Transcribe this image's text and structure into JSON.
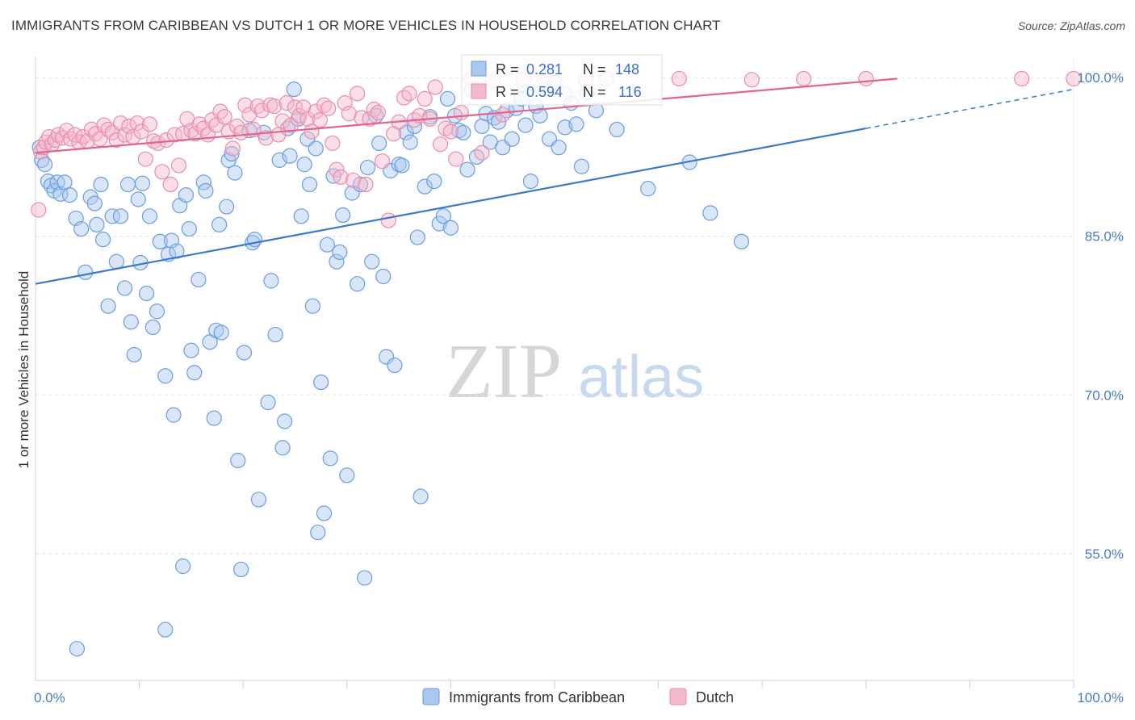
{
  "title": "IMMIGRANTS FROM CARIBBEAN VS DUTCH 1 OR MORE VEHICLES IN HOUSEHOLD CORRELATION CHART",
  "source": "Source: ZipAtlas.com",
  "watermark": {
    "part1": "ZIP",
    "part2": "atlas"
  },
  "colors": {
    "blue_fill": "#a9c8f0",
    "blue_stroke": "#6b9de0",
    "blue_line": "#3b78d0",
    "pink_fill": "#f5b9cc",
    "pink_stroke": "#eb8dab",
    "pink_line": "#e0668f",
    "grid": "#e4e4e4",
    "tick_text": "#4a7bc8"
  },
  "legend": {
    "series": [
      {
        "name": "Immigrants from Caribbean",
        "color": "#a9c8f0"
      },
      {
        "name": "Dutch",
        "color": "#f5b9cc"
      }
    ],
    "stats": [
      {
        "r_label": "R =",
        "r_value": "0.281",
        "n_label": "N =",
        "n_value": "148"
      },
      {
        "r_label": "R =",
        "r_value": "0.594",
        "n_label": "N =",
        "n_value": "116"
      }
    ]
  },
  "chart_data": {
    "type": "scatter",
    "ylabel": "1 or more Vehicles in Household",
    "x_tick_labels": [
      "0.0%",
      "100.0%"
    ],
    "y_tick_labels": [
      "100.0%",
      "85.0%",
      "70.0%",
      "55.0%"
    ],
    "y_ticks": [
      100,
      85,
      70,
      55
    ],
    "xlim": [
      0,
      100
    ],
    "ylim": [
      43,
      102
    ],
    "grid": true,
    "legend_position": "bottom",
    "series": [
      {
        "name": "Immigrants from Caribbean",
        "trend": {
          "x": [
            0,
            80
          ],
          "y": [
            80.5,
            95.2
          ],
          "dashed_extension": {
            "x": [
              80,
              100
            ],
            "y": [
              95.2,
              98.9
            ]
          }
        },
        "points": [
          [
            0.4,
            93.4
          ],
          [
            0.6,
            92.2
          ],
          [
            0.9,
            91.8
          ],
          [
            1.2,
            90.2
          ],
          [
            1.5,
            89.8
          ],
          [
            1.8,
            89.3
          ],
          [
            2.1,
            90.1
          ],
          [
            2.4,
            89.0
          ],
          [
            2.8,
            90.1
          ],
          [
            3.3,
            88.9
          ],
          [
            3.9,
            86.7
          ],
          [
            4.4,
            85.7
          ],
          [
            4.8,
            81.6
          ],
          [
            5.3,
            88.7
          ],
          [
            5.7,
            88.1
          ],
          [
            5.9,
            86.1
          ],
          [
            6.3,
            89.9
          ],
          [
            6.5,
            84.7
          ],
          [
            7.0,
            78.4
          ],
          [
            7.4,
            86.9
          ],
          [
            7.8,
            82.6
          ],
          [
            8.2,
            86.9
          ],
          [
            8.6,
            80.1
          ],
          [
            8.9,
            89.9
          ],
          [
            9.2,
            76.9
          ],
          [
            9.5,
            73.8
          ],
          [
            9.9,
            88.5
          ],
          [
            10.1,
            82.5
          ],
          [
            10.3,
            90.0
          ],
          [
            10.7,
            79.6
          ],
          [
            11.0,
            86.9
          ],
          [
            11.3,
            76.4
          ],
          [
            11.7,
            77.9
          ],
          [
            12.0,
            84.5
          ],
          [
            12.5,
            71.8
          ],
          [
            12.8,
            83.3
          ],
          [
            13.1,
            84.6
          ],
          [
            13.3,
            68.1
          ],
          [
            13.6,
            83.6
          ],
          [
            13.9,
            87.9
          ],
          [
            14.2,
            53.8
          ],
          [
            14.5,
            88.9
          ],
          [
            14.8,
            85.7
          ],
          [
            15.0,
            74.2
          ],
          [
            15.3,
            72.1
          ],
          [
            15.7,
            80.9
          ],
          [
            16.2,
            90.1
          ],
          [
            16.4,
            89.3
          ],
          [
            16.8,
            75.0
          ],
          [
            17.2,
            67.8
          ],
          [
            17.4,
            76.1
          ],
          [
            17.7,
            86.1
          ],
          [
            17.9,
            75.9
          ],
          [
            18.4,
            87.8
          ],
          [
            18.6,
            92.2
          ],
          [
            18.9,
            92.8
          ],
          [
            19.2,
            91.0
          ],
          [
            19.5,
            63.8
          ],
          [
            19.8,
            53.5
          ],
          [
            20.1,
            74.0
          ],
          [
            20.6,
            95.0
          ],
          [
            20.9,
            84.4
          ],
          [
            21.1,
            84.7
          ],
          [
            21.5,
            60.1
          ],
          [
            22.0,
            94.8
          ],
          [
            22.4,
            69.3
          ],
          [
            22.7,
            80.8
          ],
          [
            23.1,
            75.7
          ],
          [
            23.5,
            92.2
          ],
          [
            23.8,
            65.0
          ],
          [
            24.0,
            67.5
          ],
          [
            24.3,
            95.2
          ],
          [
            24.5,
            92.6
          ],
          [
            24.9,
            98.9
          ],
          [
            25.3,
            96.1
          ],
          [
            25.6,
            86.9
          ],
          [
            25.9,
            91.8
          ],
          [
            26.2,
            94.2
          ],
          [
            26.4,
            89.9
          ],
          [
            26.7,
            78.4
          ],
          [
            27.0,
            93.3
          ],
          [
            27.2,
            57.0
          ],
          [
            27.5,
            71.2
          ],
          [
            27.8,
            58.8
          ],
          [
            28.1,
            84.2
          ],
          [
            28.4,
            64.0
          ],
          [
            28.7,
            90.7
          ],
          [
            29.0,
            82.6
          ],
          [
            29.3,
            83.5
          ],
          [
            29.6,
            87.0
          ],
          [
            30.0,
            62.4
          ],
          [
            30.5,
            89.1
          ],
          [
            31.0,
            80.5
          ],
          [
            31.3,
            89.9
          ],
          [
            31.7,
            52.7
          ],
          [
            32.0,
            91.5
          ],
          [
            32.4,
            82.6
          ],
          [
            32.8,
            96.4
          ],
          [
            33.1,
            93.8
          ],
          [
            33.5,
            81.2
          ],
          [
            33.8,
            73.6
          ],
          [
            34.2,
            91.2
          ],
          [
            34.6,
            72.8
          ],
          [
            35.0,
            91.8
          ],
          [
            35.3,
            91.7
          ],
          [
            35.7,
            94.8
          ],
          [
            36.1,
            93.9
          ],
          [
            36.5,
            95.4
          ],
          [
            36.8,
            84.9
          ],
          [
            37.1,
            60.4
          ],
          [
            37.5,
            89.7
          ],
          [
            38.0,
            96.3
          ],
          [
            38.4,
            90.2
          ],
          [
            38.9,
            86.2
          ],
          [
            39.3,
            86.9
          ],
          [
            39.7,
            98.0
          ],
          [
            40.0,
            85.8
          ],
          [
            40.4,
            96.4
          ],
          [
            40.8,
            95.0
          ],
          [
            41.2,
            94.8
          ],
          [
            41.6,
            91.3
          ],
          [
            42.0,
            98.9
          ],
          [
            42.5,
            92.5
          ],
          [
            43.0,
            95.4
          ],
          [
            43.4,
            96.6
          ],
          [
            43.8,
            93.9
          ],
          [
            44.2,
            96.2
          ],
          [
            44.6,
            95.8
          ],
          [
            45.0,
            93.4
          ],
          [
            45.4,
            96.9
          ],
          [
            45.9,
            94.2
          ],
          [
            46.3,
            97.1
          ],
          [
            46.8,
            98.0
          ],
          [
            47.2,
            95.5
          ],
          [
            47.7,
            90.2
          ],
          [
            48.2,
            97.3
          ],
          [
            48.6,
            96.4
          ],
          [
            49.1,
            98.9
          ],
          [
            49.5,
            94.2
          ],
          [
            50.0,
            99.5
          ],
          [
            50.4,
            93.4
          ],
          [
            51.0,
            95.3
          ],
          [
            51.6,
            97.6
          ],
          [
            52.1,
            95.6
          ],
          [
            52.6,
            91.6
          ],
          [
            53.1,
            98.6
          ],
          [
            54.0,
            96.9
          ],
          [
            56.0,
            95.1
          ],
          [
            59.0,
            89.5
          ],
          [
            63.0,
            92.0
          ],
          [
            65.0,
            87.2
          ],
          [
            68.0,
            84.5
          ],
          [
            4.0,
            46.0
          ],
          [
            12.5,
            47.8
          ]
        ]
      },
      {
        "name": "Dutch",
        "trend": {
          "x": [
            0,
            83
          ],
          "y": [
            92.9,
            99.9
          ]
        },
        "points": [
          [
            0.3,
            87.5
          ],
          [
            0.5,
            93.0
          ],
          [
            0.8,
            93.4
          ],
          [
            1.0,
            93.9
          ],
          [
            1.3,
            94.4
          ],
          [
            1.6,
            93.7
          ],
          [
            1.9,
            94.1
          ],
          [
            2.2,
            94.6
          ],
          [
            2.6,
            94.3
          ],
          [
            3.0,
            95.0
          ],
          [
            3.4,
            94.2
          ],
          [
            3.8,
            94.6
          ],
          [
            4.2,
            93.9
          ],
          [
            4.6,
            94.4
          ],
          [
            5.0,
            94.0
          ],
          [
            5.4,
            95.1
          ],
          [
            5.8,
            94.7
          ],
          [
            6.2,
            94.2
          ],
          [
            6.6,
            95.5
          ],
          [
            7.0,
            95.1
          ],
          [
            7.4,
            94.8
          ],
          [
            7.8,
            94.1
          ],
          [
            8.2,
            95.7
          ],
          [
            8.6,
            94.6
          ],
          [
            9.0,
            95.4
          ],
          [
            9.4,
            94.4
          ],
          [
            9.8,
            95.7
          ],
          [
            10.2,
            94.9
          ],
          [
            10.6,
            92.3
          ],
          [
            11.0,
            95.6
          ],
          [
            11.4,
            94.0
          ],
          [
            11.8,
            93.8
          ],
          [
            12.2,
            91.1
          ],
          [
            12.6,
            94.1
          ],
          [
            13.0,
            89.9
          ],
          [
            13.4,
            94.6
          ],
          [
            13.8,
            91.7
          ],
          [
            14.2,
            94.7
          ],
          [
            14.6,
            96.1
          ],
          [
            15.0,
            95.0
          ],
          [
            15.4,
            94.7
          ],
          [
            15.8,
            95.6
          ],
          [
            16.2,
            95.2
          ],
          [
            16.6,
            94.6
          ],
          [
            17.0,
            96.0
          ],
          [
            17.4,
            95.5
          ],
          [
            17.8,
            96.8
          ],
          [
            18.2,
            96.3
          ],
          [
            18.6,
            94.9
          ],
          [
            19.0,
            93.3
          ],
          [
            19.4,
            95.4
          ],
          [
            19.8,
            94.8
          ],
          [
            20.2,
            97.4
          ],
          [
            20.6,
            96.5
          ],
          [
            21.0,
            95.1
          ],
          [
            21.4,
            97.3
          ],
          [
            21.8,
            96.9
          ],
          [
            22.2,
            94.3
          ],
          [
            22.6,
            97.4
          ],
          [
            23.0,
            97.3
          ],
          [
            23.4,
            94.6
          ],
          [
            23.8,
            95.9
          ],
          [
            24.2,
            97.6
          ],
          [
            24.6,
            95.5
          ],
          [
            25.0,
            97.2
          ],
          [
            25.4,
            96.4
          ],
          [
            25.8,
            97.2
          ],
          [
            26.2,
            96.1
          ],
          [
            26.6,
            94.9
          ],
          [
            27.0,
            96.8
          ],
          [
            27.4,
            96.0
          ],
          [
            27.8,
            97.4
          ],
          [
            28.2,
            97.1
          ],
          [
            28.6,
            93.8
          ],
          [
            29.0,
            91.3
          ],
          [
            29.4,
            90.6
          ],
          [
            29.8,
            97.6
          ],
          [
            30.2,
            96.6
          ],
          [
            30.6,
            90.3
          ],
          [
            31.0,
            98.5
          ],
          [
            31.4,
            96.2
          ],
          [
            31.8,
            89.9
          ],
          [
            32.2,
            96.1
          ],
          [
            32.6,
            97.0
          ],
          [
            33.0,
            96.7
          ],
          [
            33.4,
            92.1
          ],
          [
            34.0,
            86.5
          ],
          [
            34.5,
            94.7
          ],
          [
            35.0,
            95.8
          ],
          [
            35.5,
            98.1
          ],
          [
            36.0,
            98.5
          ],
          [
            36.5,
            96.0
          ],
          [
            37.0,
            96.4
          ],
          [
            37.5,
            98.0
          ],
          [
            38.0,
            96.1
          ],
          [
            38.5,
            99.1
          ],
          [
            39.0,
            93.7
          ],
          [
            39.5,
            95.2
          ],
          [
            40.0,
            94.9
          ],
          [
            40.5,
            92.3
          ],
          [
            41.0,
            96.7
          ],
          [
            42.0,
            99.9
          ],
          [
            43.0,
            92.9
          ],
          [
            44.0,
            99.7
          ],
          [
            45.0,
            96.5
          ],
          [
            47.0,
            99.8
          ],
          [
            49.0,
            99.7
          ],
          [
            51.0,
            98.5
          ],
          [
            53.0,
            99.8
          ],
          [
            55.0,
            99.9
          ],
          [
            62.0,
            99.9
          ],
          [
            69.0,
            99.8
          ],
          [
            74.0,
            99.9
          ],
          [
            80.0,
            99.9
          ],
          [
            95.0,
            99.9
          ],
          [
            100.0,
            99.9
          ]
        ]
      }
    ]
  }
}
